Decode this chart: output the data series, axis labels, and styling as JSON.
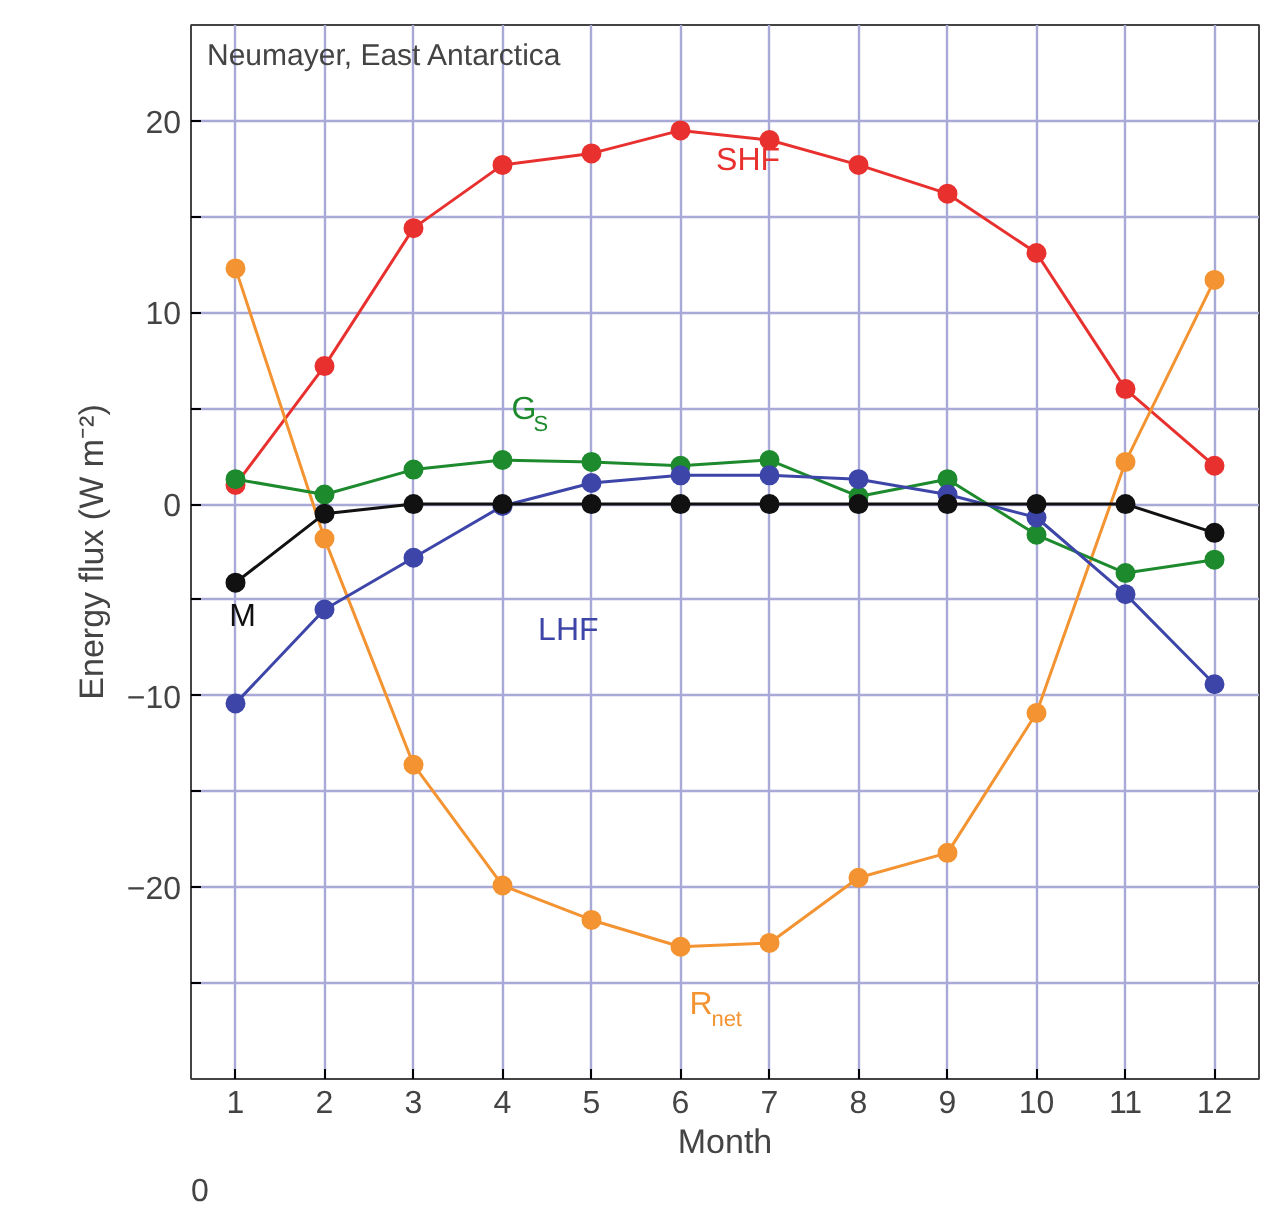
{
  "chart_data": {
    "type": "line",
    "title": "Neumayer, East Antarctica",
    "xlabel": "Month",
    "ylabel": "Energy flux (W m⁻²)",
    "x": [
      1,
      2,
      3,
      4,
      5,
      6,
      7,
      8,
      9,
      10,
      11,
      12
    ],
    "series": [
      {
        "name": "SHF",
        "color": "#e8312f",
        "values": [
          1.0,
          7.2,
          14.4,
          17.7,
          18.3,
          19.5,
          19.0,
          17.7,
          16.2,
          13.1,
          6.0,
          2.0
        ]
      },
      {
        "name": "R$_{net}$",
        "color": "#f39331",
        "values": [
          12.3,
          -1.8,
          -13.6,
          -19.9,
          -21.7,
          -23.1,
          -22.9,
          -19.5,
          -18.2,
          -10.9,
          2.2,
          11.7
        ]
      },
      {
        "name": "G$_{S}$",
        "color": "#1e8a2e",
        "values": [
          1.3,
          0.5,
          1.8,
          2.3,
          2.2,
          2.0,
          2.3,
          0.4,
          1.3,
          -1.6,
          -3.6,
          -2.9
        ]
      },
      {
        "name": "LHF",
        "color": "#3d46a8",
        "values": [
          -10.4,
          -5.5,
          -2.8,
          -0.1,
          1.1,
          1.5,
          1.5,
          1.3,
          0.5,
          -0.7,
          -4.7,
          -9.4
        ]
      },
      {
        "name": "M",
        "color": "#111111",
        "values": [
          -4.1,
          -0.5,
          0,
          0,
          0,
          0,
          0,
          0,
          0,
          0,
          0,
          -1.5
        ]
      }
    ],
    "xlim": [
      0.5,
      12.5
    ],
    "xticks": [
      1,
      2,
      3,
      4,
      5,
      6,
      7,
      8,
      9,
      10,
      11,
      12
    ],
    "ylim": [
      -30,
      25
    ],
    "yticks": [
      {
        "value": -25,
        "label": null
      },
      -20,
      {
        "value": -15,
        "label": null
      },
      -10,
      {
        "value": -5,
        "label": null
      },
      0,
      {
        "value": 5,
        "label": null
      },
      10,
      {
        "value": 15,
        "label": null
      },
      20
    ],
    "annotations": [
      "0"
    ],
    "grid": true,
    "marker": "circle",
    "line_style": "solid"
  }
}
